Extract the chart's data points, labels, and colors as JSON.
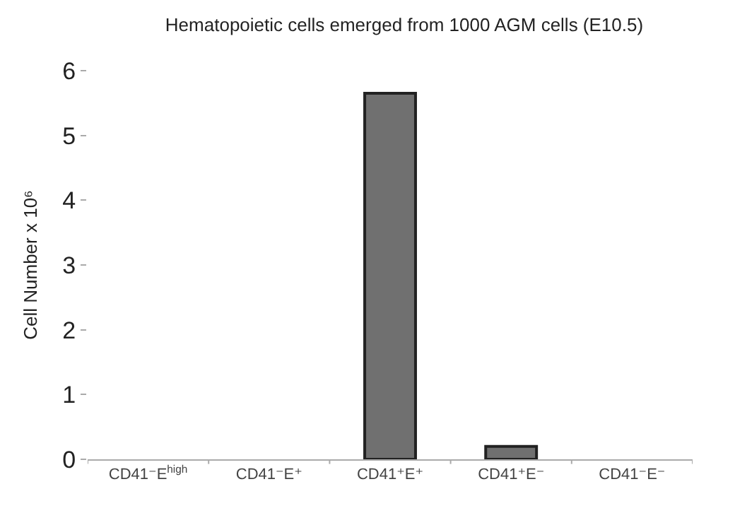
{
  "chart_data": {
    "type": "bar",
    "title": "Hematopoietic cells emerged from 1000 AGM cells (E10.5)",
    "ylabel": "Cell Number x 10⁶",
    "categories": [
      "CD41⁻E$^{high}$",
      "CD41⁻E⁺",
      "CD41⁺E⁺",
      "CD41⁺E⁻",
      "CD41⁻E⁻"
    ],
    "values": [
      0,
      0,
      5.65,
      0.2,
      0
    ],
    "color": "#707070",
    "ylim": [
      0,
      6
    ],
    "yticks": [
      0,
      1,
      2,
      3,
      4,
      5,
      6
    ],
    "grid": false
  }
}
